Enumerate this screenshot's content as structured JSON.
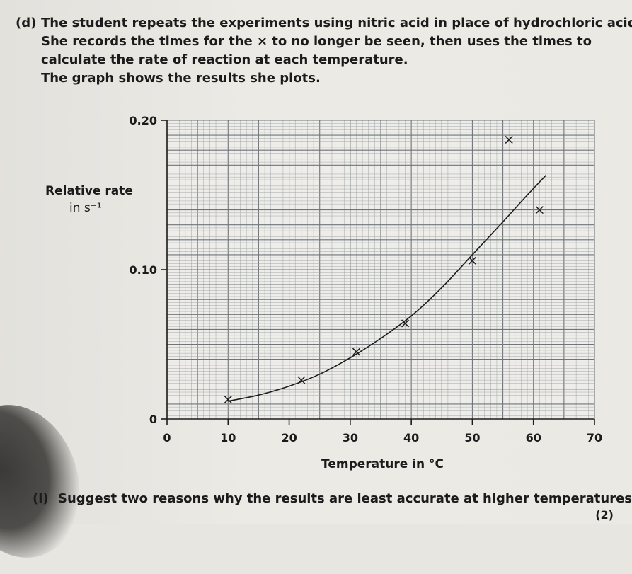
{
  "question": {
    "label": "(d)",
    "lines": [
      "The student repeats the experiments using nitric acid in place of hydrochloric acid.",
      "She records the times for the × to no longer be seen, then uses the times to",
      "calculate the rate of reaction at each temperature.",
      "The graph shows the results she plots."
    ]
  },
  "sub_question": {
    "label": "(i)",
    "text": "Suggest two reasons why the results are least accurate at higher temperatures.",
    "marks": "(2)"
  },
  "chart_data": {
    "type": "scatter",
    "title": "",
    "xlabel": "Temperature in °C",
    "ylabel": "Relative rate",
    "ylabel_unit": "in s⁻¹",
    "xlim": [
      0,
      70
    ],
    "ylim": [
      0,
      0.2
    ],
    "x_ticks": [
      "0",
      "10",
      "20",
      "30",
      "40",
      "50",
      "60",
      "70"
    ],
    "y_ticks": [
      "0",
      "0.10",
      "0.20"
    ],
    "grid": true,
    "points": [
      {
        "x": 10,
        "y": 0.013
      },
      {
        "x": 22,
        "y": 0.026
      },
      {
        "x": 31,
        "y": 0.045
      },
      {
        "x": 39,
        "y": 0.064
      },
      {
        "x": 50,
        "y": 0.106
      },
      {
        "x": 61,
        "y": 0.14
      },
      {
        "x": 56,
        "y": 0.187
      }
    ],
    "curve": [
      {
        "x": 10,
        "y": 0.012
      },
      {
        "x": 15,
        "y": 0.016
      },
      {
        "x": 20,
        "y": 0.022
      },
      {
        "x": 25,
        "y": 0.03
      },
      {
        "x": 30,
        "y": 0.041
      },
      {
        "x": 35,
        "y": 0.054
      },
      {
        "x": 40,
        "y": 0.069
      },
      {
        "x": 45,
        "y": 0.088
      },
      {
        "x": 50,
        "y": 0.11
      },
      {
        "x": 55,
        "y": 0.132
      },
      {
        "x": 59,
        "y": 0.15
      },
      {
        "x": 62,
        "y": 0.163
      }
    ],
    "colors": {
      "grid_minor": "#9aa0a3",
      "grid_major": "#6f7579",
      "paper": "#eeede9",
      "ink": "#1c1c1c"
    }
  }
}
